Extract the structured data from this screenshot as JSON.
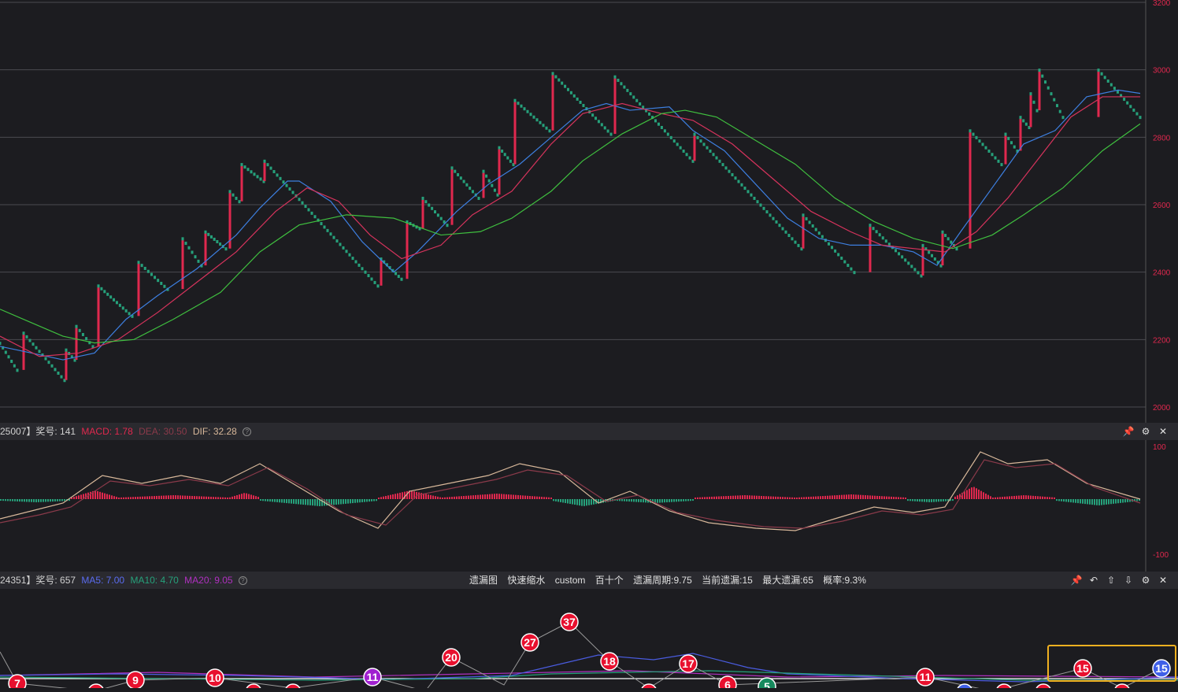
{
  "main": {
    "y_axis": {
      "ticks": [
        "3200",
        "3000",
        "2800",
        "2600",
        "2400",
        "2200",
        "2000"
      ],
      "values": [
        3200,
        3000,
        2800,
        2600,
        2400,
        2200,
        2000
      ]
    },
    "colors": {
      "up": "#e0284e",
      "down": "#26a17b",
      "ma_blue": "#3d7fe0",
      "ma_red": "#d6335c",
      "ma_green": "#3fbf3f",
      "grid": "#4a4a50"
    }
  },
  "macd_header": {
    "prefix": "25007】奖号: 141",
    "macd_label": "MACD: 1.78",
    "dea_label": "DEA: 30.50",
    "dif_label": "DIF: 32.28",
    "help": "?"
  },
  "macd": {
    "y_axis": {
      "top": "100",
      "bottom": "-100"
    }
  },
  "miss_header": {
    "prefix": "24351】奖号: 657",
    "ma5_label": "MA5: 7.00",
    "ma10_label": "MA10: 4.70",
    "ma20_label": "MA20: 9.05",
    "help": "?",
    "center": [
      "遗漏图",
      "快速缩水",
      "custom",
      "百十个",
      "遗漏周期:9.75",
      "当前遗漏:15",
      "最大遗漏:65",
      "概率:9.3%"
    ]
  },
  "miss_nodes": [
    {
      "label": "7",
      "color": "red"
    },
    {
      "label": "9",
      "color": "red"
    },
    {
      "label": "10",
      "color": "red"
    },
    {
      "label": "11",
      "color": "purple"
    },
    {
      "label": "20",
      "color": "red"
    },
    {
      "label": "27",
      "color": "red"
    },
    {
      "label": "37",
      "color": "red"
    },
    {
      "label": "18",
      "color": "red"
    },
    {
      "label": "17",
      "color": "red"
    },
    {
      "label": "6",
      "color": "red"
    },
    {
      "label": "5",
      "color": "green"
    },
    {
      "label": "11",
      "color": "red"
    },
    {
      "label": "15",
      "color": "red"
    },
    {
      "label": "15",
      "color": "blue"
    }
  ],
  "icons": {
    "macd": [
      "pin-icon",
      "gear-icon",
      "close-icon"
    ],
    "miss": [
      "pin-icon",
      "undo-icon",
      "up-icon",
      "down-icon",
      "gear-icon",
      "close-icon"
    ]
  }
}
